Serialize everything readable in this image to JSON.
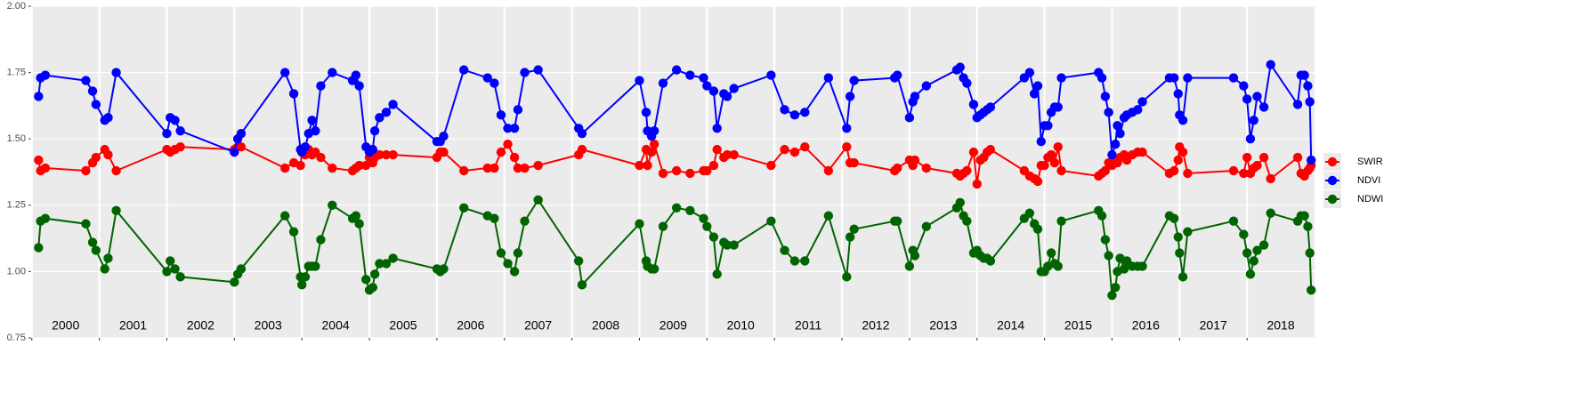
{
  "chart_data": {
    "type": "line",
    "x": [
      2000.1,
      2000.13,
      2000.2,
      2000.8,
      2000.9,
      2000.95,
      2001.08,
      2001.13,
      2001.25,
      2002.0,
      2002.05,
      2002.12,
      2002.2,
      2003.0,
      2003.05,
      2003.1,
      2003.75,
      2003.88,
      2003.98,
      2004.0,
      2004.05,
      2004.1,
      2004.15,
      2004.2,
      2004.28,
      2004.45,
      2004.75,
      2004.8,
      2004.85,
      2004.95,
      2005.0,
      2005.05,
      2005.08,
      2005.15,
      2005.25,
      2005.35,
      2006.0,
      2006.05,
      2006.1,
      2006.4,
      2006.75,
      2006.85,
      2006.95,
      2007.05,
      2007.15,
      2007.2,
      2007.3,
      2007.5,
      2008.1,
      2008.15,
      2009.0,
      2009.1,
      2009.12,
      2009.18,
      2009.22,
      2009.35,
      2009.55,
      2009.75,
      2009.95,
      2010.0,
      2010.1,
      2010.15,
      2010.25,
      2010.3,
      2010.4,
      2010.95,
      2011.15,
      2011.3,
      2011.45,
      2011.8,
      2012.07,
      2012.12,
      2012.18,
      2012.78,
      2012.82,
      2013.0,
      2013.05,
      2013.08,
      2013.25,
      2013.7,
      2013.75,
      2013.8,
      2013.85,
      2013.95,
      2014.0,
      2014.05,
      2014.1,
      2014.15,
      2014.2,
      2014.7,
      2014.78,
      2014.85,
      2014.9,
      2014.95,
      2015.0,
      2015.05,
      2015.1,
      2015.15,
      2015.2,
      2015.25,
      2015.8,
      2015.85,
      2015.9,
      2015.95,
      2016.0,
      2016.05,
      2016.08,
      2016.12,
      2016.18,
      2016.22,
      2016.3,
      2016.38,
      2016.45,
      2016.85,
      2016.92,
      2016.98,
      2017.0,
      2017.05,
      2017.12,
      2017.8,
      2017.95,
      2018.0,
      2018.05,
      2018.1,
      2018.15,
      2018.25,
      2018.35,
      2018.75,
      2018.8,
      2018.85,
      2018.9,
      2018.93,
      2018.95
    ],
    "series": [
      {
        "name": "SWIR",
        "color": "#ff0000",
        "values": [
          1.42,
          1.38,
          1.39,
          1.38,
          1.41,
          1.43,
          1.46,
          1.44,
          1.38,
          1.46,
          1.45,
          1.46,
          1.47,
          1.46,
          1.47,
          1.47,
          1.39,
          1.41,
          1.4,
          1.45,
          1.44,
          1.46,
          1.44,
          1.45,
          1.43,
          1.39,
          1.38,
          1.39,
          1.4,
          1.4,
          1.43,
          1.41,
          1.43,
          1.44,
          1.44,
          1.44,
          1.43,
          1.45,
          1.45,
          1.38,
          1.39,
          1.39,
          1.45,
          1.48,
          1.43,
          1.39,
          1.39,
          1.4,
          1.44,
          1.46,
          1.4,
          1.46,
          1.4,
          1.45,
          1.48,
          1.37,
          1.38,
          1.37,
          1.38,
          1.38,
          1.4,
          1.46,
          1.43,
          1.44,
          1.44,
          1.4,
          1.46,
          1.45,
          1.47,
          1.38,
          1.47,
          1.41,
          1.41,
          1.38,
          1.39,
          1.42,
          1.4,
          1.42,
          1.39,
          1.37,
          1.36,
          1.37,
          1.38,
          1.45,
          1.33,
          1.42,
          1.43,
          1.45,
          1.46,
          1.38,
          1.36,
          1.35,
          1.34,
          1.4,
          1.4,
          1.43,
          1.44,
          1.41,
          1.47,
          1.38,
          1.36,
          1.37,
          1.38,
          1.41,
          1.4,
          1.42,
          1.41,
          1.43,
          1.44,
          1.42,
          1.44,
          1.45,
          1.45,
          1.37,
          1.38,
          1.42,
          1.47,
          1.45,
          1.37,
          1.38,
          1.37,
          1.43,
          1.37,
          1.39,
          1.4,
          1.43,
          1.35,
          1.43,
          1.37,
          1.36,
          1.38,
          1.39,
          1.4
        ]
      },
      {
        "name": "NDVI",
        "color": "#0000ff",
        "values": [
          1.66,
          1.73,
          1.74,
          1.72,
          1.68,
          1.63,
          1.57,
          1.58,
          1.75,
          1.52,
          1.58,
          1.57,
          1.53,
          1.45,
          1.5,
          1.52,
          1.75,
          1.67,
          1.46,
          1.45,
          1.47,
          1.52,
          1.57,
          1.53,
          1.7,
          1.75,
          1.72,
          1.74,
          1.7,
          1.47,
          1.45,
          1.46,
          1.53,
          1.58,
          1.6,
          1.63,
          1.49,
          1.49,
          1.51,
          1.76,
          1.73,
          1.71,
          1.59,
          1.54,
          1.54,
          1.61,
          1.75,
          1.76,
          1.54,
          1.52,
          1.72,
          1.6,
          1.53,
          1.51,
          1.53,
          1.71,
          1.76,
          1.74,
          1.73,
          1.7,
          1.68,
          1.54,
          1.67,
          1.66,
          1.69,
          1.74,
          1.61,
          1.59,
          1.6,
          1.73,
          1.54,
          1.66,
          1.72,
          1.73,
          1.74,
          1.58,
          1.64,
          1.66,
          1.7,
          1.76,
          1.77,
          1.73,
          1.71,
          1.63,
          1.58,
          1.59,
          1.6,
          1.61,
          1.62,
          1.73,
          1.75,
          1.67,
          1.7,
          1.49,
          1.55,
          1.55,
          1.6,
          1.62,
          1.62,
          1.73,
          1.75,
          1.73,
          1.66,
          1.6,
          1.44,
          1.48,
          1.55,
          1.52,
          1.58,
          1.59,
          1.6,
          1.61,
          1.64,
          1.73,
          1.73,
          1.67,
          1.59,
          1.57,
          1.73,
          1.73,
          1.7,
          1.65,
          1.5,
          1.57,
          1.66,
          1.62,
          1.78,
          1.63,
          1.74,
          1.74,
          1.7,
          1.64,
          1.42
        ]
      },
      {
        "name": "NDWI",
        "color": "#006400",
        "values": [
          1.09,
          1.19,
          1.2,
          1.18,
          1.11,
          1.08,
          1.01,
          1.05,
          1.23,
          1.0,
          1.04,
          1.01,
          0.98,
          0.96,
          0.99,
          1.01,
          1.21,
          1.15,
          0.98,
          0.95,
          0.98,
          1.02,
          1.02,
          1.02,
          1.12,
          1.25,
          1.2,
          1.21,
          1.18,
          0.97,
          0.93,
          0.94,
          0.99,
          1.03,
          1.03,
          1.05,
          1.01,
          1.0,
          1.01,
          1.24,
          1.21,
          1.2,
          1.07,
          1.03,
          1.0,
          1.07,
          1.19,
          1.27,
          1.04,
          0.95,
          1.18,
          1.04,
          1.02,
          1.01,
          1.01,
          1.17,
          1.24,
          1.23,
          1.2,
          1.17,
          1.13,
          0.99,
          1.11,
          1.1,
          1.1,
          1.19,
          1.08,
          1.04,
          1.04,
          1.21,
          0.98,
          1.13,
          1.16,
          1.19,
          1.19,
          1.02,
          1.08,
          1.06,
          1.17,
          1.24,
          1.26,
          1.21,
          1.19,
          1.07,
          1.08,
          1.06,
          1.05,
          1.05,
          1.04,
          1.2,
          1.22,
          1.18,
          1.16,
          1.0,
          1.0,
          1.02,
          1.07,
          1.03,
          1.02,
          1.19,
          1.23,
          1.21,
          1.12,
          1.06,
          0.91,
          0.94,
          1.0,
          1.05,
          1.01,
          1.04,
          1.02,
          1.02,
          1.02,
          1.21,
          1.2,
          1.13,
          1.07,
          0.98,
          1.15,
          1.19,
          1.14,
          1.07,
          0.99,
          1.04,
          1.08,
          1.1,
          1.22,
          1.19,
          1.21,
          1.21,
          1.17,
          1.07,
          0.93
        ]
      }
    ],
    "xlim": [
      1999.99,
      2019.0
    ],
    "xticks": [
      2000,
      2001,
      2002,
      2003,
      2004,
      2005,
      2006,
      2007,
      2008,
      2009,
      2010,
      2011,
      2012,
      2013,
      2014,
      2015,
      2016,
      2017,
      2018
    ],
    "year_labels": [
      "2000",
      "2001",
      "2002",
      "2003",
      "2004",
      "2005",
      "2006",
      "2007",
      "2008",
      "2009",
      "2010",
      "2011",
      "2012",
      "2013",
      "2014",
      "2015",
      "2016",
      "2017",
      "2018"
    ],
    "ylim": [
      0.75,
      2.0
    ],
    "yticks": [
      0.75,
      {
        "value": 1.0,
        "label": "1.00"
      },
      1.25,
      {
        "value": 1.5,
        "label": "1.50"
      },
      1.75,
      {
        "value": 2.0,
        "label": "2.00"
      }
    ],
    "grid": true,
    "legend": "right"
  }
}
